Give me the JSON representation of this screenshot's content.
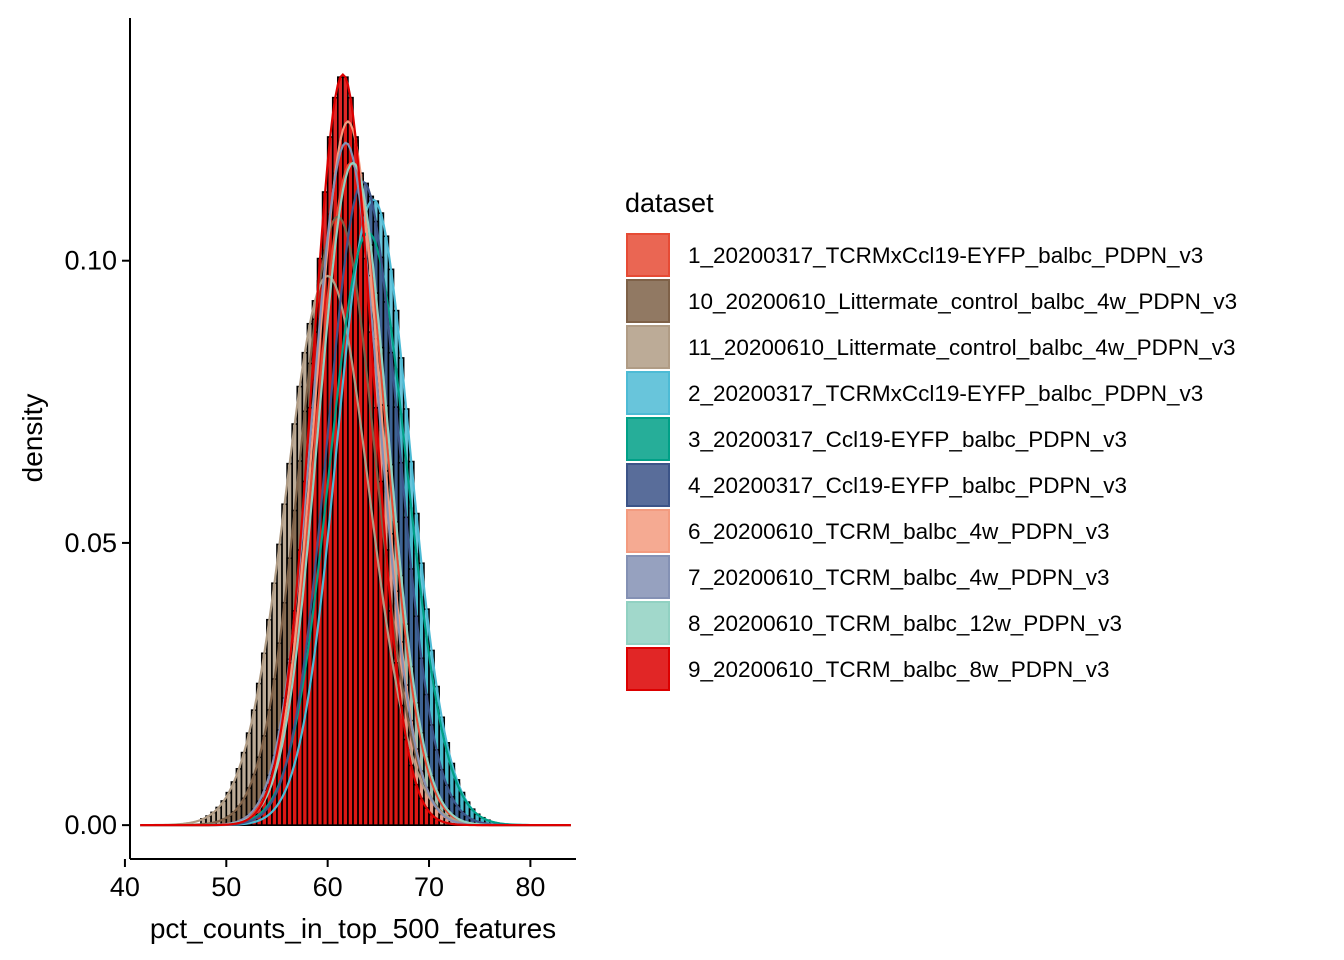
{
  "chart_data": {
    "type": "histogram+density",
    "xlabel": "pct_counts_in_top_500_features",
    "ylabel": "density",
    "xlim": [
      40.5,
      84.5
    ],
    "ylim": [
      -0.006,
      0.143
    ],
    "x_ticks": [
      {
        "value": 40,
        "label": "40"
      },
      {
        "value": 50,
        "label": "50"
      },
      {
        "value": 60,
        "label": "60"
      },
      {
        "value": 70,
        "label": "70"
      },
      {
        "value": 80,
        "label": "80"
      }
    ],
    "y_ticks": [
      {
        "value": 0.0,
        "label": "0.00"
      },
      {
        "value": 0.05,
        "label": "0.05"
      },
      {
        "value": 0.1,
        "label": "0.10"
      }
    ],
    "grid": false,
    "legend": {
      "title": "dataset",
      "position": "right"
    },
    "bin_width": 0.5,
    "series": [
      {
        "name": "1_20200317_TCRMxCcl19-EYFP_balbc_PDPN_v3",
        "color": "#E64B35",
        "mean": 62.3,
        "sd": 3.4
      },
      {
        "name": "10_20200610_Littermate_control_balbc_4w_PDPN_v3",
        "color": "#7E6148",
        "mean": 61.0,
        "sd": 3.7
      },
      {
        "name": "11_20200610_Littermate_control_balbc_4w_PDPN_v3",
        "color": "#B09C85",
        "mean": 60.0,
        "sd": 4.1
      },
      {
        "name": "2_20200317_TCRMxCcl19-EYFP_balbc_PDPN_v3",
        "color": "#4DBBD5",
        "mean": 64.5,
        "sd": 3.6
      },
      {
        "name": "3_20200317_Ccl19-EYFP_balbc_PDPN_v3",
        "color": "#00A087",
        "mean": 64.0,
        "sd": 3.8
      },
      {
        "name": "4_20200317_Ccl19-EYFP_balbc_PDPN_v3",
        "color": "#3C5488",
        "mean": 63.5,
        "sd": 3.5
      },
      {
        "name": "6_20200610_TCRM_balbc_4w_PDPN_v3",
        "color": "#F39B7F",
        "mean": 62.0,
        "sd": 3.2
      },
      {
        "name": "7_20200610_TCRM_balbc_4w_PDPN_v3",
        "color": "#8491B4",
        "mean": 61.8,
        "sd": 3.3
      },
      {
        "name": "8_20200610_TCRM_balbc_12w_PDPN_v3",
        "color": "#91D1C2",
        "mean": 62.5,
        "sd": 3.4
      },
      {
        "name": "9_20200610_TCRM_balbc_8w_PDPN_v3",
        "color": "#DC0000",
        "mean": 61.5,
        "sd": 3.0
      }
    ]
  }
}
